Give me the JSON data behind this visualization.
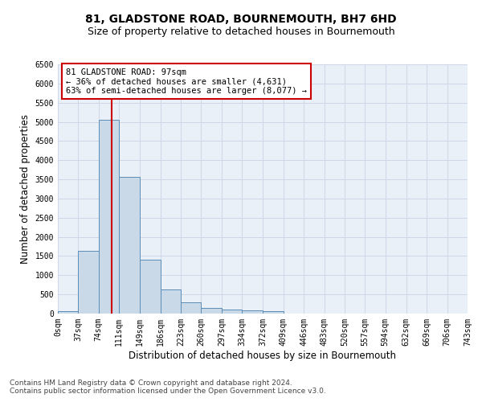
{
  "title": "81, GLADSTONE ROAD, BOURNEMOUTH, BH7 6HD",
  "subtitle": "Size of property relative to detached houses in Bournemouth",
  "xlabel": "Distribution of detached houses by size in Bournemouth",
  "ylabel": "Number of detached properties",
  "footer_line1": "Contains HM Land Registry data © Crown copyright and database right 2024.",
  "footer_line2": "Contains public sector information licensed under the Open Government Licence v3.0.",
  "bin_edges": [
    0,
    37,
    74,
    111,
    149,
    186,
    223,
    260,
    297,
    334,
    372,
    409,
    446,
    483,
    520,
    557,
    594,
    632,
    669,
    706,
    743
  ],
  "bar_heights": [
    60,
    1630,
    5060,
    3570,
    1400,
    620,
    290,
    140,
    100,
    75,
    60,
    0,
    0,
    0,
    0,
    0,
    0,
    0,
    0,
    0
  ],
  "bar_color": "#c9d9e8",
  "bar_edgecolor": "#5b8db8",
  "property_size": 97,
  "vline_color": "#cc0000",
  "annotation_text": "81 GLADSTONE ROAD: 97sqm\n← 36% of detached houses are smaller (4,631)\n63% of semi-detached houses are larger (8,077) →",
  "annotation_box_color": "#cc0000",
  "annotation_text_color": "#000000",
  "ylim": [
    0,
    6500
  ],
  "yticks": [
    0,
    500,
    1000,
    1500,
    2000,
    2500,
    3000,
    3500,
    4000,
    4500,
    5000,
    5500,
    6000,
    6500
  ],
  "grid_color": "#d0d8e8",
  "background_color": "#eaf0f8",
  "title_fontsize": 10,
  "subtitle_fontsize": 9,
  "xlabel_fontsize": 8.5,
  "ylabel_fontsize": 8.5,
  "tick_fontsize": 7,
  "footer_fontsize": 6.5,
  "annotation_fontsize": 7.5
}
